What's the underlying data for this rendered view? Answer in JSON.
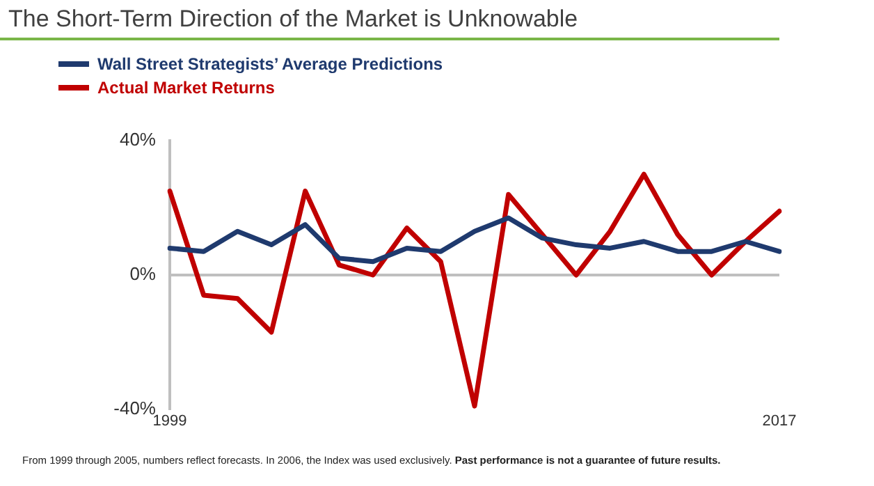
{
  "chart_data": {
    "type": "line",
    "title": "The Short-Term Direction of the Market is Unknowable",
    "categories": [
      "1999",
      null,
      null,
      null,
      null,
      null,
      null,
      null,
      null,
      null,
      null,
      null,
      null,
      null,
      null,
      null,
      null,
      null,
      "2017"
    ],
    "series": [
      {
        "name": "Wall Street Strategists’ Average Predictions",
        "color": "#1f3a6e",
        "values": [
          8,
          7,
          13,
          9,
          15,
          5,
          4,
          8,
          7,
          13,
          17,
          11,
          9,
          8,
          10,
          7,
          7,
          10,
          7
        ]
      },
      {
        "name": "Actual Market Returns",
        "color": "#c00000",
        "values": [
          25,
          -6,
          -7,
          -17,
          25,
          3,
          0,
          14,
          4,
          -39,
          24,
          12,
          0,
          13,
          30,
          12,
          0,
          10,
          19
        ]
      }
    ],
    "ylim": [
      -40,
      40
    ],
    "yticks": [
      {
        "value": -40,
        "label": "-40%"
      },
      {
        "value": 0,
        "label": "0%"
      },
      {
        "value": 40,
        "label": "40%"
      }
    ],
    "ref_lines": [
      {
        "axis": "y",
        "value": 0,
        "color": "#bfbfbf"
      }
    ],
    "legend": "top left",
    "grid": false,
    "marker": "none",
    "line_style": "solid",
    "annotations": [
      "From 1999 through 2005, numbers reflect forecasts. In 2006, the Index was used exclusively.",
      "Past performance is not a guarantee of future results."
    ]
  }
}
